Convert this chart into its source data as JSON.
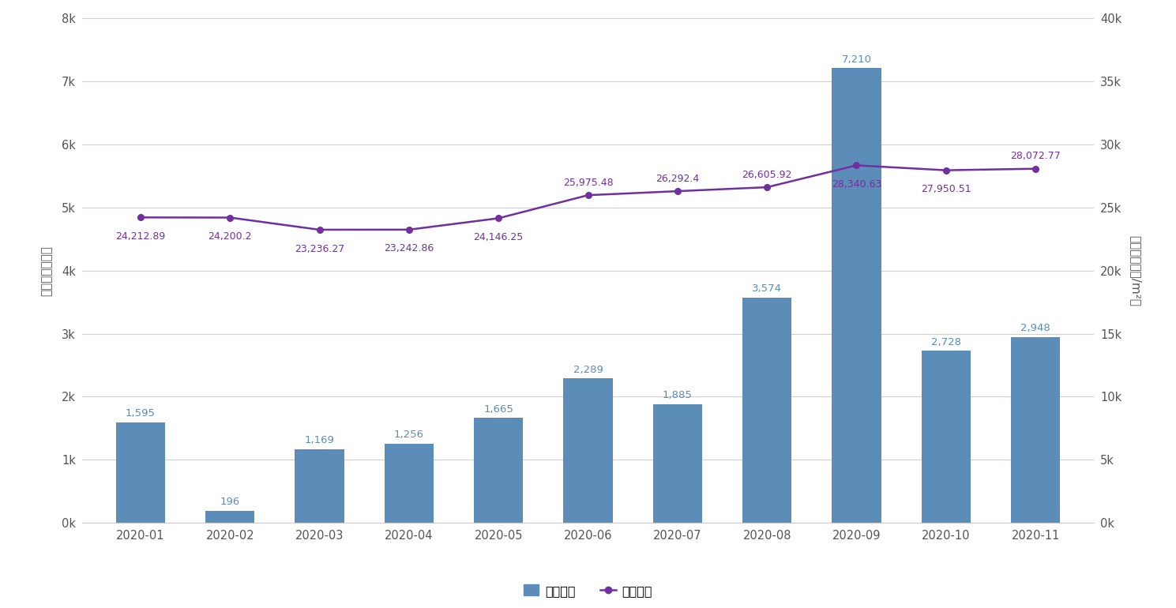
{
  "months": [
    "2020-01",
    "2020-02",
    "2020-03",
    "2020-04",
    "2020-05",
    "2020-06",
    "2020-07",
    "2020-08",
    "2020-09",
    "2020-10",
    "2020-11"
  ],
  "sales_count": [
    1595,
    196,
    1169,
    1256,
    1665,
    2289,
    1885,
    3574,
    7210,
    2728,
    2948
  ],
  "sales_price": [
    24212.89,
    24200.2,
    23236.27,
    23242.86,
    24146.25,
    25975.48,
    26292.4,
    26605.92,
    28340.63,
    27950.51,
    28072.77
  ],
  "bar_color": "#5B8DB8",
  "line_color": "#7030A0",
  "left_ylabel": "销售套数（套）",
  "right_ylabel": "销售价格（元/m²）",
  "left_ylim": [
    0,
    8000
  ],
  "right_ylim": [
    0,
    40000
  ],
  "left_yticks": [
    0,
    1000,
    2000,
    3000,
    4000,
    5000,
    6000,
    7000,
    8000
  ],
  "right_yticks": [
    0,
    5000,
    10000,
    15000,
    20000,
    25000,
    30000,
    35000,
    40000
  ],
  "left_yticklabels": [
    "0k",
    "1k",
    "2k",
    "3k",
    "4k",
    "5k",
    "6k",
    "7k",
    "8k"
  ],
  "right_yticklabels": [
    "0k",
    "5k",
    "10k",
    "15k",
    "20k",
    "25k",
    "30k",
    "35k",
    "40k"
  ],
  "legend_labels": [
    "销售套数",
    "销售价格"
  ],
  "background_color": "#ffffff",
  "grid_color": "#d0d0d0",
  "bar_label_va": [
    "bottom",
    "bottom",
    "bottom",
    "bottom",
    "bottom",
    "bottom",
    "bottom",
    "bottom",
    "bottom",
    "bottom",
    "bottom"
  ],
  "price_label_above": [
    false,
    false,
    false,
    false,
    false,
    true,
    true,
    true,
    false,
    false,
    true
  ],
  "price_label_values": [
    "24,212.89",
    "24,200.2",
    "23,236.27",
    "23,242.86",
    "24,146.25",
    "25,975.48",
    "26,292.4",
    "26,605.92",
    "28,340.63",
    "27,950.51",
    "28,072.77"
  ],
  "bar_label_values": [
    "1,595",
    "196",
    "1,169",
    "1,256",
    "1,665",
    "2,289",
    "1,885",
    "3,574",
    "7,210",
    "2,728",
    "2,948"
  ]
}
